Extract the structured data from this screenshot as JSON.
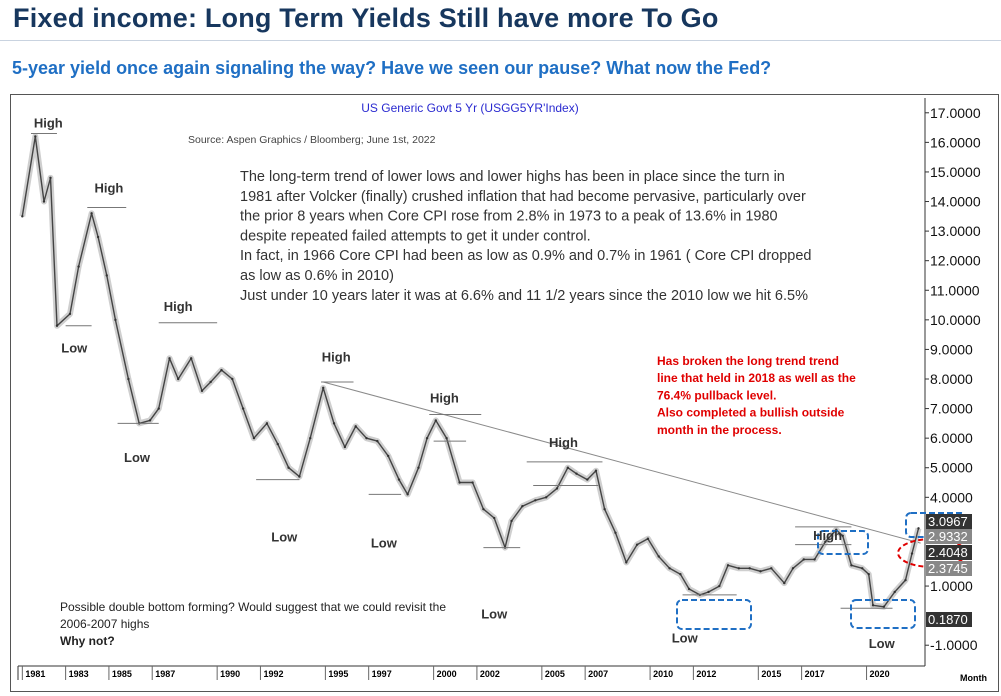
{
  "header": {
    "title": "Fixed income: Long Term Yields Still have more To Go",
    "subtitle": "5-year yield once again signaling the way? Have we seen our pause? What now the Fed?"
  },
  "chart_data": {
    "type": "line",
    "title": "US Generic Govt 5 Yr (USGG5YR'Index)",
    "source": "Source: Aspen Graphics / Bloomberg; June 1st, 2022",
    "x_unit_label": "Month",
    "ylim": [
      -1.5,
      17.5
    ],
    "xlim": [
      1980.8,
      2022.7
    ],
    "y_ticks": [
      "17.0000",
      "16.0000",
      "15.0000",
      "14.0000",
      "13.0000",
      "12.0000",
      "11.0000",
      "10.0000",
      "9.0000",
      "8.0000",
      "7.0000",
      "6.0000",
      "5.0000",
      "4.0000",
      "1.0000",
      "-1.0000"
    ],
    "x_ticks": [
      "1981",
      "1983",
      "1985",
      "1987",
      "1990",
      "1992",
      "1995",
      "1997",
      "2000",
      "2002",
      "2005",
      "2007",
      "2010",
      "2012",
      "2015",
      "2017",
      "2020"
    ],
    "price_labels": [
      "3.0967",
      "2.9332",
      "2.4048",
      "2.3745",
      "0.1870"
    ],
    "series": [
      {
        "x": [
          1981.0,
          1981.6,
          1982.0,
          1982.3,
          1982.6,
          1983.2,
          1983.6,
          1984.2,
          1984.5,
          1984.9,
          1985.3,
          1985.9,
          1986.4,
          1986.9,
          1987.3,
          1987.8,
          1988.2,
          1988.8,
          1989.3,
          1989.7,
          1990.2,
          1990.7,
          1991.2,
          1991.7,
          1992.3,
          1992.8,
          1993.3,
          1993.8,
          1994.3,
          1994.9,
          1995.4,
          1995.9,
          1996.4,
          1996.9,
          1997.4,
          1997.9,
          1998.4,
          1998.8,
          1999.3,
          1999.7,
          2000.1,
          2000.6,
          2001.2,
          2001.8,
          2002.3,
          2002.8,
          2003.3,
          2003.6,
          2004.1,
          2004.7,
          2005.2,
          2005.7,
          2006.2,
          2006.6,
          2007.1,
          2007.5,
          2007.9,
          2008.4,
          2008.9,
          2009.4,
          2009.9,
          2010.4,
          2010.9,
          2011.4,
          2011.8,
          2012.3,
          2012.7,
          2013.2,
          2013.6,
          2014.1,
          2014.6,
          2015.1,
          2015.6,
          2016.2,
          2016.6,
          2017.1,
          2017.6,
          2018.1,
          2018.6,
          2018.9,
          2019.3,
          2019.8,
          2020.1,
          2020.3,
          2020.8,
          2021.3,
          2021.8,
          2022.1,
          2022.4
        ],
        "values": [
          13.5,
          16.2,
          14.0,
          14.8,
          9.8,
          10.2,
          11.8,
          13.6,
          12.8,
          11.5,
          10.0,
          8.0,
          6.5,
          6.6,
          7.0,
          8.7,
          8.0,
          8.7,
          7.6,
          7.9,
          8.3,
          8.0,
          7.0,
          6.0,
          6.5,
          5.8,
          5.0,
          4.7,
          6.0,
          7.7,
          6.5,
          5.7,
          6.4,
          6.0,
          5.9,
          5.4,
          4.6,
          4.1,
          5.0,
          6.0,
          6.6,
          6.0,
          4.5,
          4.5,
          3.6,
          3.3,
          2.3,
          3.2,
          3.7,
          3.9,
          4.0,
          4.3,
          5.0,
          4.8,
          4.6,
          4.9,
          3.6,
          2.8,
          1.8,
          2.4,
          2.6,
          2.0,
          1.6,
          1.4,
          0.9,
          0.7,
          0.8,
          1.0,
          1.7,
          1.6,
          1.6,
          1.5,
          1.6,
          1.1,
          1.6,
          1.9,
          1.9,
          2.5,
          2.9,
          2.7,
          1.7,
          1.6,
          1.4,
          0.35,
          0.3,
          0.8,
          1.2,
          2.1,
          2.95
        ]
      }
    ],
    "trendline": {
      "x": [
        1994.9,
        2022.5
      ],
      "y": [
        7.9,
        2.45
      ]
    },
    "swing_labels": [
      {
        "text": "High",
        "x": 1982.2,
        "y": 16.5
      },
      {
        "text": "High",
        "x": 1985.0,
        "y": 14.3
      },
      {
        "text": "Low",
        "x": 1983.4,
        "y": 8.9
      },
      {
        "text": "High",
        "x": 1988.2,
        "y": 10.3
      },
      {
        "text": "Low",
        "x": 1986.3,
        "y": 5.2
      },
      {
        "text": "High",
        "x": 1995.5,
        "y": 8.6
      },
      {
        "text": "Low",
        "x": 1993.1,
        "y": 2.5
      },
      {
        "text": "Low",
        "x": 1997.7,
        "y": 2.3
      },
      {
        "text": "High",
        "x": 2000.5,
        "y": 7.2
      },
      {
        "text": "Low",
        "x": 2002.8,
        "y": -0.1
      },
      {
        "text": "High",
        "x": 2006.0,
        "y": 5.7
      },
      {
        "text": "Low",
        "x": 2011.6,
        "y": -0.9
      },
      {
        "text": "High",
        "x": 2018.2,
        "y": 2.55
      },
      {
        "text": "Low",
        "x": 2020.7,
        "y": -1.1
      }
    ],
    "annotations": {
      "main_text": [
        "The long-term trend of lower lows and lower highs has been in place since the turn in",
        "1981 after Volcker (finally) crushed inflation that had become pervasive, particularly over",
        "the prior 8 years when Core CPI rose from 2.8% in 1973 to a peak of 13.6% in 1980",
        "despite repeated failed attempts to get it under control.",
        "In fact, in 1966 Core CPI had been as low as 0.9% and 0.7% in 1961 ( Core CPI dropped",
        "as low as 0.6% in 2010)",
        "Just under 10 years later it was at 6.6% and 11 1/2 years since the 2010 low we hit 6.5%"
      ],
      "red_text": [
        "Has broken the long trend trend",
        "line that held in 2018 as well as the",
        "76.4% pullback level.",
        "Also completed a bullish outside",
        "month in the process."
      ],
      "bottom_text": [
        "Possible double bottom forming? Would suggest that we could revisit the",
        "2006-2007 highs",
        "Why not?"
      ]
    },
    "colors": {
      "title": "#17375e",
      "subtitle": "#1f6fc4",
      "chart_title": "#2a2ad0",
      "red": "#e00000",
      "box": "#1f6fc4",
      "line": "#444444"
    }
  }
}
